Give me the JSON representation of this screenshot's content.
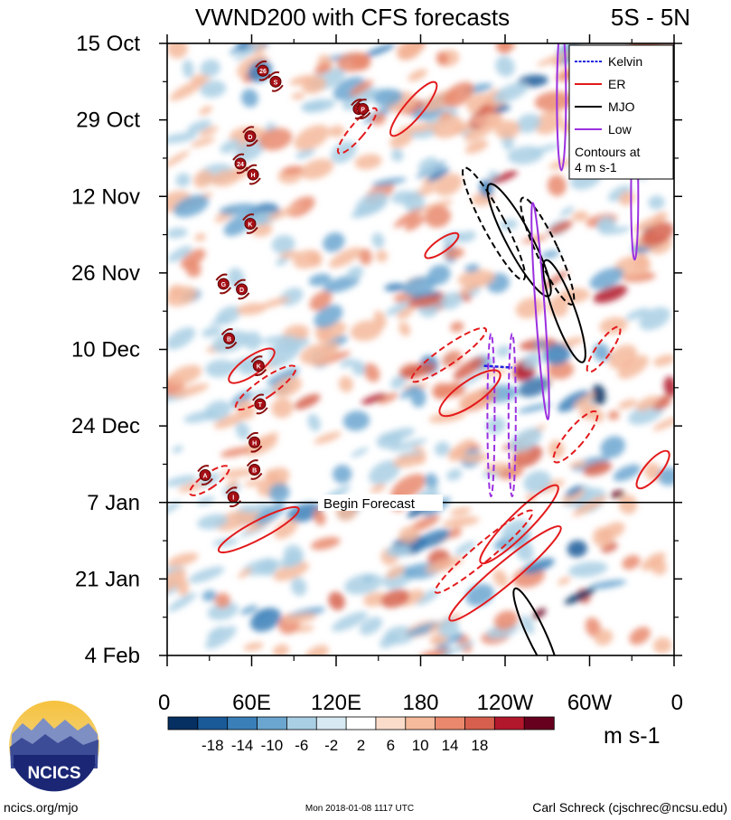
{
  "header": {
    "title": "VWND200 with CFS forecasts",
    "region": "5S - 5N"
  },
  "chart_data": {
    "type": "heatmap",
    "title": "VWND200 with CFS forecasts",
    "subtitle": "5S - 5N",
    "y_tick_labels": [
      "15 Oct",
      "29 Oct",
      "12 Nov",
      "26 Nov",
      "10 Dec",
      "24 Dec",
      "7 Jan",
      "21 Jan",
      "4 Feb"
    ],
    "x_tick_labels": [
      "0",
      "60E",
      "120E",
      "180",
      "120W",
      "60W",
      "0"
    ],
    "x_tick_lon": [
      0,
      60,
      120,
      180,
      240,
      300,
      360
    ],
    "x_range_lon": [
      0,
      360
    ],
    "y_range": [
      "15 Oct",
      "4 Feb"
    ],
    "forecast_start": "7 Jan",
    "forecast_label": "Begin Forecast",
    "colorbar": {
      "ticks": [
        "-18",
        "-14",
        "-10",
        "-6",
        "-2",
        "2",
        "6",
        "10",
        "14",
        "18"
      ],
      "units": "m s-1",
      "colors": [
        "#053061",
        "#1a5a99",
        "#3a7fb8",
        "#6ba6d0",
        "#a9cfe4",
        "#d7e9f3",
        "#ffffff",
        "#fbdcca",
        "#f5b99b",
        "#e9886c",
        "#d6604d",
        "#b2182b",
        "#67001f"
      ]
    },
    "legend": {
      "position": "top-right",
      "entries": [
        {
          "name": "Kelvin",
          "color": "#1f1fe0"
        },
        {
          "name": "ER",
          "color": "#e31a1c"
        },
        {
          "name": "MJO",
          "color": "#000000"
        },
        {
          "name": "Low",
          "color": "#9b30e0"
        }
      ],
      "note_line1": "Contours at",
      "note_line2": "4 m s-1"
    },
    "storm_markers": [
      {
        "label": "26",
        "lon": 68,
        "date": "20 Oct"
      },
      {
        "label": "S",
        "lon": 77,
        "date": "22 Oct"
      },
      {
        "label": "D",
        "lon": 59,
        "date": "1 Nov"
      },
      {
        "label": "24",
        "lon": 52,
        "date": "6 Nov"
      },
      {
        "label": "H",
        "lon": 61,
        "date": "8 Nov"
      },
      {
        "label": "K",
        "lon": 59,
        "date": "17 Nov"
      },
      {
        "label": "G",
        "lon": 40,
        "date": "28 Nov"
      },
      {
        "label": "D",
        "lon": 53,
        "date": "29 Nov"
      },
      {
        "label": "B",
        "lon": 44,
        "date": "8 Dec"
      },
      {
        "label": "K",
        "lon": 65,
        "date": "13 Dec"
      },
      {
        "label": "T",
        "lon": 66,
        "date": "20 Dec"
      },
      {
        "label": "H",
        "lon": 62,
        "date": "27 Dec"
      },
      {
        "label": "B",
        "lon": 62,
        "date": "1 Jan"
      },
      {
        "label": "A",
        "lon": 27,
        "date": "2 Jan"
      },
      {
        "label": "I",
        "lon": 47,
        "date": "6 Jan"
      },
      {
        "label": "S",
        "lon": 136,
        "date": "27 Oct"
      },
      {
        "label": "P",
        "lon": 139,
        "date": "27 Oct"
      }
    ]
  },
  "footer": {
    "logo_text": "NCICS",
    "url": "ncics.org/mjo",
    "timestamp": "Mon 2018-01-08 1117 UTC",
    "author": "Carl Schreck (cjschrec@ncsu.edu)"
  }
}
